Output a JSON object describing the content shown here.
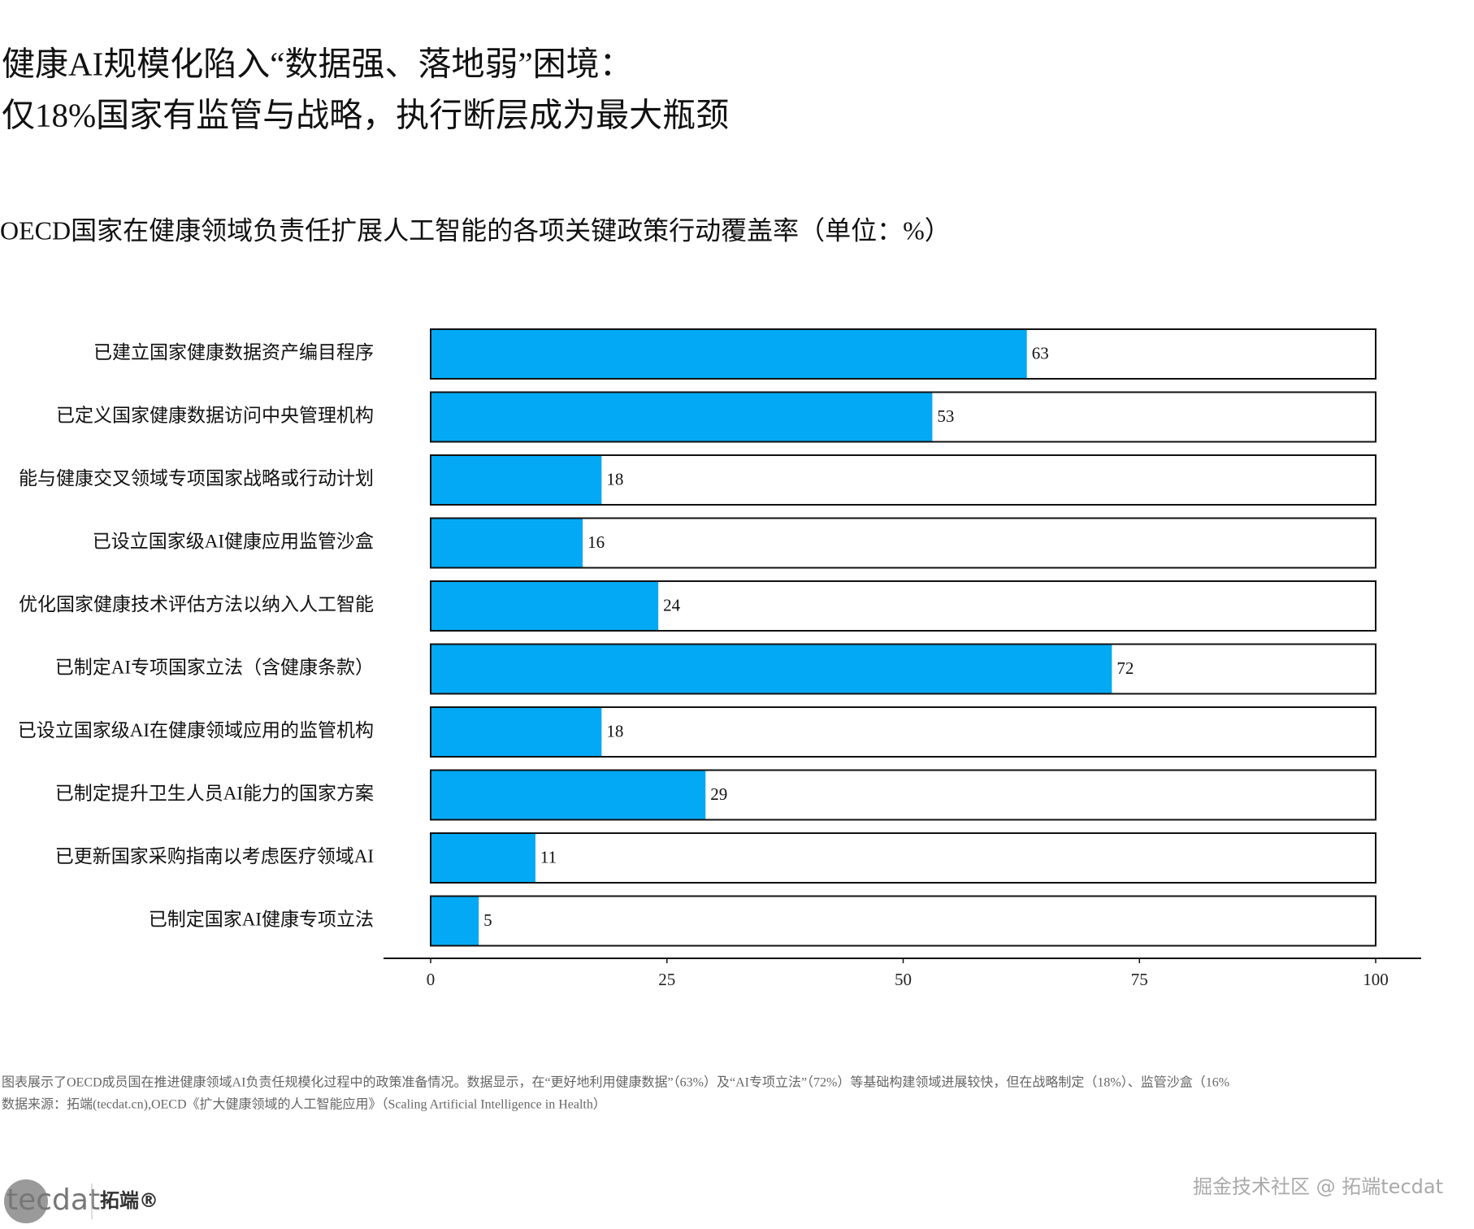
{
  "chart_data": {
    "type": "barh",
    "title": [
      "健康AI规模化陷入“数据强、落地弱”困境：",
      "仅18%国家有监管与战略，执行断层成为最大瓶颈"
    ],
    "subtitle": "OECD国家在健康领域负责任扩展人工智能的各项关键政策行动覆盖率（单位：%）",
    "categories": [
      "已建立国家健康数据资产编目程序",
      "已定义国家健康数据访问中央管理机构",
      "能与健康交叉领域专项国家战略或行动计划",
      "已设立国家级AI健康应用监管沙盒",
      "优化国家健康技术评估方法以纳入人工智能",
      "已制定AI专项国家立法（含健康条款）",
      "已设立国家级AI在健康领域应用的监管机构",
      "已制定提升卫生人员AI能力的国家方案",
      "已更新国家采购指南以考虑医疗领域AI",
      "已制定国家AI健康专项立法"
    ],
    "values": [
      63,
      53,
      18,
      16,
      24,
      72,
      18,
      29,
      11,
      5
    ],
    "color": "#03a9f4",
    "xlim": [
      0,
      100
    ],
    "xticks": [
      0,
      25,
      50,
      75,
      100
    ],
    "notes": [
      "图表展示了OECD成员国在推进健康领域AI负责任规模化过程中的政策准备情况。数据显示，在“更好地利用健康数据”（63%）及“AI专项立法”（72%）等基础构建领域进展较快，但在战略制定（18%）、监管沙盒（16%",
      "数据来源：拓端(tecdat.cn),OECD《扩大健康领域的人工智能应用》（Scaling Artificial Intelligence in Health）"
    ]
  },
  "branding": {
    "logo": "tecdat",
    "logo_cn": "拓端®",
    "watermark": "掘金技术社区 @ 拓端tecdat"
  }
}
